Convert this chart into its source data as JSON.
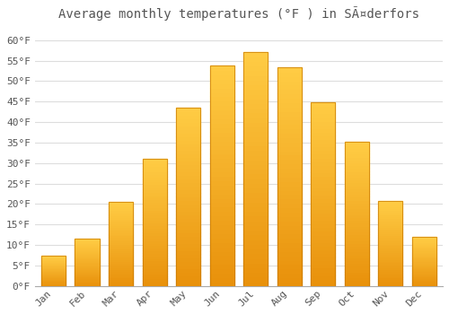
{
  "title": "Average monthly temperatures (°F ) in Säderfors",
  "title_raw": "Average monthly temperatures (°F ) in SÃ¤derfors",
  "months": [
    "Jan",
    "Feb",
    "Mar",
    "Apr",
    "May",
    "Jun",
    "Jul",
    "Aug",
    "Sep",
    "Oct",
    "Nov",
    "Dec"
  ],
  "values": [
    7.4,
    11.6,
    20.6,
    31.1,
    43.6,
    53.8,
    57.2,
    53.4,
    44.8,
    35.1,
    20.7,
    12.0
  ],
  "bar_color_light": "#FFCC44",
  "bar_color_dark": "#E8900A",
  "bar_edge_color": "#C87800",
  "background_color": "#FFFFFF",
  "grid_color": "#DDDDDD",
  "text_color": "#555555",
  "yticks": [
    0,
    5,
    10,
    15,
    20,
    25,
    30,
    35,
    40,
    45,
    50,
    55,
    60
  ],
  "ylim": [
    0,
    63
  ],
  "title_fontsize": 10,
  "tick_fontsize": 8,
  "font_family": "monospace"
}
